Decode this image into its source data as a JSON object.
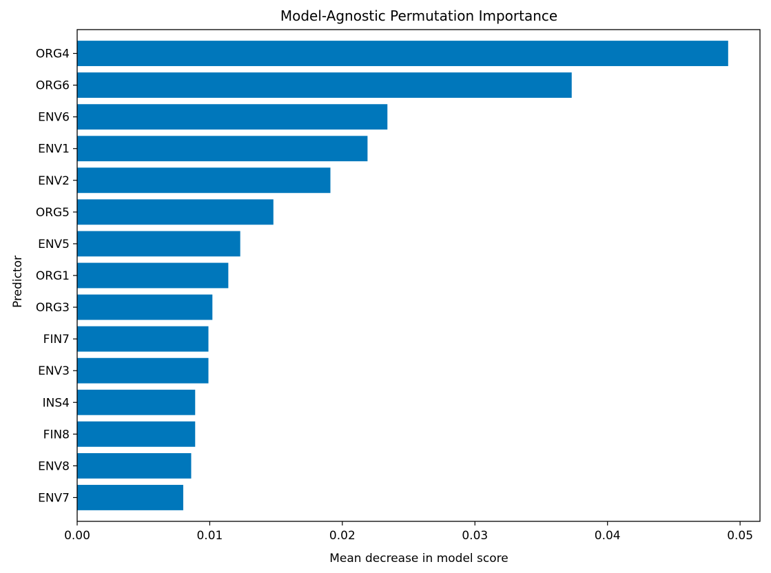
{
  "chart_data": {
    "type": "bar",
    "orientation": "horizontal",
    "title": "Model-Agnostic Permutation Importance",
    "xlabel": "Mean decrease in model score",
    "ylabel": "Predictor",
    "categories": [
      "ORG4",
      "ORG6",
      "ENV6",
      "ENV1",
      "ENV2",
      "ORG5",
      "ENV5",
      "ORG1",
      "ORG3",
      "FIN7",
      "ENV3",
      "INS4",
      "FIN8",
      "ENV8",
      "ENV7"
    ],
    "values": [
      0.0491,
      0.0373,
      0.0234,
      0.0219,
      0.0191,
      0.0148,
      0.0123,
      0.0114,
      0.0102,
      0.0099,
      0.0099,
      0.0089,
      0.0089,
      0.0086,
      0.008
    ],
    "xlim": [
      0,
      0.0515
    ],
    "xticks": [
      0.0,
      0.01,
      0.02,
      0.03,
      0.04,
      0.05
    ],
    "xtick_labels": [
      "0.00",
      "0.01",
      "0.02",
      "0.03",
      "0.04",
      "0.05"
    ],
    "bar_color": "#0077bb",
    "grid": false,
    "legend": "none"
  }
}
